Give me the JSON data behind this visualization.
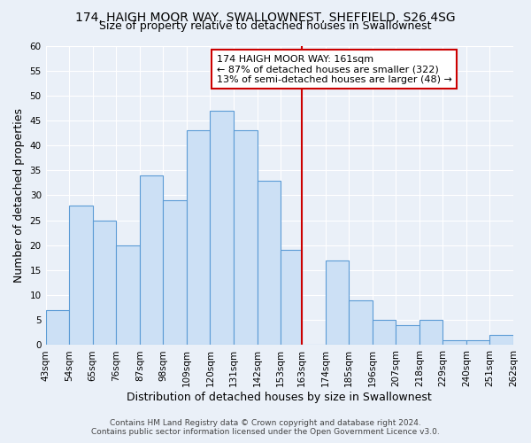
{
  "title": "174, HAIGH MOOR WAY, SWALLOWNEST, SHEFFIELD, S26 4SG",
  "subtitle": "Size of property relative to detached houses in Swallownest",
  "xlabel": "Distribution of detached houses by size in Swallownest",
  "ylabel": "Number of detached properties",
  "bin_edges": [
    43,
    54,
    65,
    76,
    87,
    98,
    109,
    120,
    131,
    142,
    153,
    163,
    174,
    185,
    196,
    207,
    218,
    229,
    240,
    251,
    262
  ],
  "bar_heights": [
    7,
    28,
    25,
    20,
    34,
    29,
    43,
    47,
    43,
    33,
    19,
    0,
    17,
    9,
    5,
    4,
    5,
    1,
    1,
    2
  ],
  "bar_facecolor": "#cce0f5",
  "bar_edgecolor": "#5b9bd5",
  "vline_x": 163,
  "vline_color": "#cc0000",
  "annotation_text": "174 HAIGH MOOR WAY: 161sqm\n← 87% of detached houses are smaller (322)\n13% of semi-detached houses are larger (48) →",
  "annotation_box_edgecolor": "#cc0000",
  "annotation_box_facecolor": "#ffffff",
  "ylim": [
    0,
    60
  ],
  "yticks": [
    0,
    5,
    10,
    15,
    20,
    25,
    30,
    35,
    40,
    45,
    50,
    55,
    60
  ],
  "background_color": "#eaf0f8",
  "grid_color": "#ffffff",
  "title_fontsize": 10,
  "subtitle_fontsize": 9,
  "xlabel_fontsize": 9,
  "ylabel_fontsize": 9,
  "tick_fontsize": 7.5,
  "footer_line1": "Contains HM Land Registry data © Crown copyright and database right 2024.",
  "footer_line2": "Contains public sector information licensed under the Open Government Licence v3.0."
}
